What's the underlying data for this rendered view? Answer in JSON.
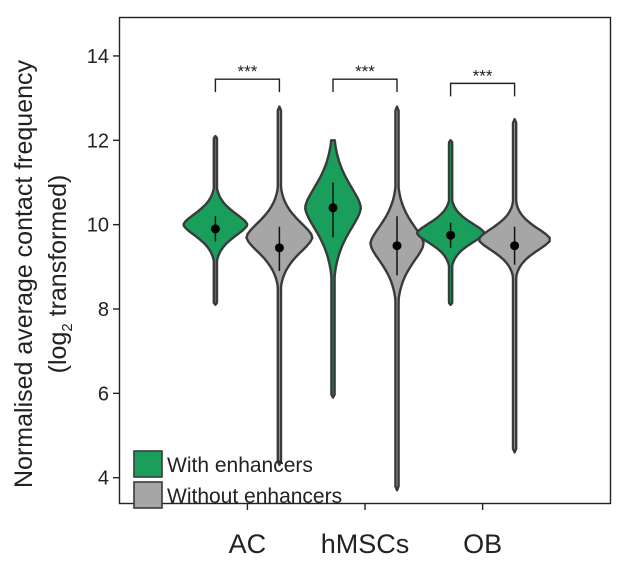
{
  "chart_data": {
    "type": "violin",
    "ylabel_line1": "Normalised average contact frequency",
    "ylabel_line2_pre": "(log",
    "ylabel_line2_sub": "2",
    "ylabel_line2_post": " transformed)",
    "ylim": [
      3.4,
      14.9
    ],
    "yticks": [
      4,
      6,
      8,
      10,
      12,
      14
    ],
    "ytick_labels": [
      "4",
      "6",
      "8",
      "10",
      "12",
      "14"
    ],
    "categories": [
      "AC",
      "hMSCs",
      "OB"
    ],
    "grid": false,
    "legend_position": "bottom-left",
    "series": [
      {
        "name": "With enhancers",
        "color": "#1a9e5c"
      },
      {
        "name": "Without enhancers",
        "color": "#a6a6a6"
      }
    ],
    "violins": [
      {
        "group": "AC",
        "series": 0,
        "min": 8.1,
        "max": 12.1,
        "median": 9.9,
        "iqr": [
          9.6,
          10.2
        ],
        "peak": 10.0,
        "halfwidth": 0.55,
        "spread": 0.28
      },
      {
        "group": "AC",
        "series": 1,
        "min": 4.3,
        "max": 12.8,
        "median": 9.45,
        "iqr": [
          8.9,
          9.95
        ],
        "peak": 9.7,
        "halfwidth": 0.57,
        "spread": 0.38
      },
      {
        "group": "hMSCs",
        "series": 0,
        "min": 5.9,
        "max": 12.0,
        "median": 10.4,
        "iqr": [
          9.7,
          11.0
        ],
        "peak": 10.4,
        "halfwidth": 0.48,
        "spread": 0.55
      },
      {
        "group": "hMSCs",
        "series": 1,
        "min": 3.7,
        "max": 12.8,
        "median": 9.5,
        "iqr": [
          8.8,
          10.2
        ],
        "peak": 9.55,
        "halfwidth": 0.46,
        "spread": 0.45
      },
      {
        "group": "OB",
        "series": 0,
        "min": 8.1,
        "max": 12.0,
        "median": 9.75,
        "iqr": [
          9.45,
          10.05
        ],
        "peak": 9.8,
        "halfwidth": 0.58,
        "spread": 0.25
      },
      {
        "group": "OB",
        "series": 1,
        "min": 4.6,
        "max": 12.5,
        "median": 9.5,
        "iqr": [
          9.05,
          9.95
        ],
        "peak": 9.65,
        "halfwidth": 0.62,
        "spread": 0.28
      }
    ],
    "significance": [
      {
        "group": "AC",
        "label": "***",
        "y": 13.45
      },
      {
        "group": "hMSCs",
        "label": "***",
        "y": 13.45
      },
      {
        "group": "OB",
        "label": "***",
        "y": 13.35
      }
    ]
  }
}
